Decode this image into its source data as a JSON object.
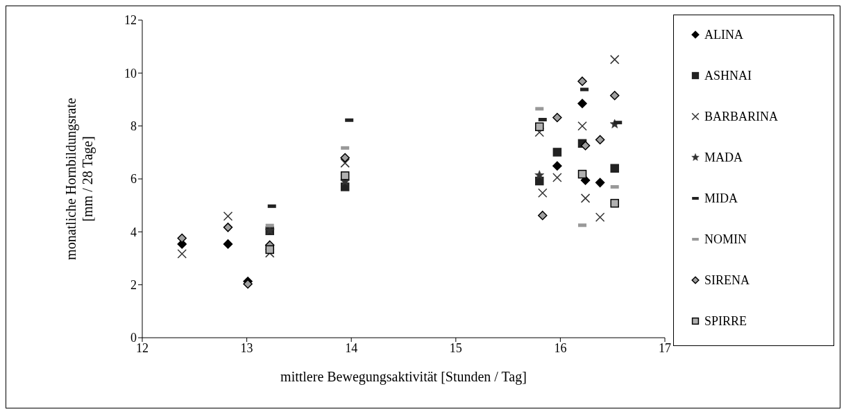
{
  "chart_data": {
    "type": "scatter",
    "xlabel": "mittlere Bewegungsaktivität [Stunden / Tag]",
    "ylabel": "monatliche Hornbildungsrate [mm / 28 Tage]",
    "xlim": [
      12,
      17
    ],
    "xticks": [
      12,
      13,
      14,
      15,
      16,
      17
    ],
    "ylim": [
      0,
      12
    ],
    "yticks": [
      0,
      2,
      4,
      6,
      8,
      10,
      12
    ],
    "legend": "right",
    "series": [
      {
        "name": "ALINA",
        "color": "#000000",
        "marker": "diamond",
        "x": [
          12.38,
          12.82,
          13.01,
          15.97,
          16.21,
          16.24,
          16.38
        ],
        "values": [
          3.54,
          3.54,
          2.13,
          6.49,
          8.85,
          5.95,
          5.86
        ]
      },
      {
        "name": "ASHNAI",
        "color": "#222222",
        "marker": "square",
        "x": [
          13.22,
          13.94,
          15.8,
          15.97,
          16.21,
          16.52
        ],
        "values": [
          4.04,
          5.7,
          5.92,
          7.01,
          7.34,
          6.4
        ]
      },
      {
        "name": "BARBARINA",
        "color": "#333333",
        "marker": "cross",
        "x": [
          12.38,
          12.82,
          13.22,
          13.94,
          15.8,
          15.83,
          15.97,
          16.21,
          16.24,
          16.38,
          16.52
        ],
        "values": [
          3.17,
          4.59,
          3.2,
          6.6,
          7.76,
          5.47,
          6.05,
          8.0,
          5.27,
          4.55,
          10.51
        ]
      },
      {
        "name": "MADA",
        "color": "#333333",
        "marker": "star",
        "x": [
          13.22,
          13.94,
          15.8,
          16.52
        ],
        "values": [
          4.05,
          5.9,
          6.14,
          8.07
        ]
      },
      {
        "name": "MIDA",
        "color": "#222222",
        "x": [
          13.24,
          13.98,
          15.83,
          16.23,
          16.55
        ],
        "values": [
          4.97,
          8.22,
          8.24,
          9.38,
          8.13
        ]
      },
      {
        "name": "NOMIN",
        "color": "#999999",
        "x": [
          13.22,
          13.94,
          15.8,
          16.21,
          16.52
        ],
        "values": [
          4.24,
          7.17,
          8.65,
          4.25,
          5.7
        ]
      },
      {
        "name": "SIRENA",
        "color": "#a0a0a0",
        "marker": "diamond",
        "x": [
          12.38,
          12.82,
          13.01,
          13.22,
          13.94,
          15.83,
          15.97,
          16.21,
          16.24,
          16.38,
          16.52
        ],
        "values": [
          3.76,
          4.17,
          2.03,
          3.5,
          6.8,
          4.62,
          8.32,
          9.69,
          7.26,
          7.48,
          9.15
        ]
      },
      {
        "name": "SPIRRE",
        "color": "#b0b0b0",
        "marker": "square",
        "x": [
          13.22,
          13.94,
          15.8,
          16.21,
          16.52
        ],
        "values": [
          3.33,
          6.12,
          7.97,
          6.18,
          5.08
        ]
      }
    ]
  }
}
